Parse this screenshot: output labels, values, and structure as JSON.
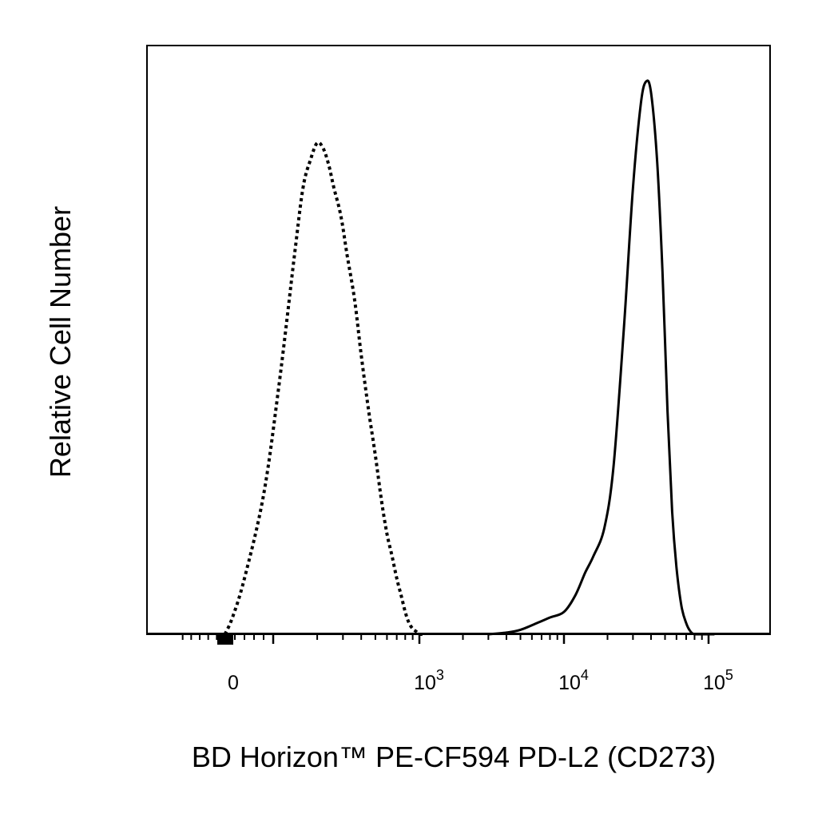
{
  "chart_data": {
    "type": "line",
    "title": "",
    "xlabel": "BD Horizon™ PE-CF594 PD-L2 (CD273)",
    "ylabel": "Relative Cell Number",
    "x_scale": "biexponential",
    "xlim": [
      -120,
      200000
    ],
    "ylim": [
      0,
      100
    ],
    "grid": false,
    "legend": "none",
    "x_ticks": [
      {
        "value": 0,
        "label": "0",
        "exp": ""
      },
      {
        "value": 1000,
        "label": "10",
        "exp": "3"
      },
      {
        "value": 10000,
        "label": "10",
        "exp": "4"
      },
      {
        "value": 100000,
        "label": "10",
        "exp": "5"
      }
    ],
    "series": [
      {
        "style": "dotted",
        "color": "#000000",
        "x": [
          -1,
          15,
          40,
          80,
          110,
          140,
          160,
          180,
          200,
          220,
          240,
          260,
          290,
          320,
          360,
          400,
          450,
          500,
          550,
          600,
          650,
          700,
          750,
          800,
          850,
          900,
          950,
          1000,
          1050
        ],
        "y": [
          0,
          3,
          10,
          25,
          45,
          68,
          80,
          85,
          88,
          87,
          84,
          80,
          75,
          68,
          60,
          50,
          40,
          32,
          24,
          18,
          14,
          10,
          7,
          4,
          2,
          1,
          0.5,
          0,
          0
        ]
      },
      {
        "style": "solid",
        "color": "#000000",
        "x": [
          3000,
          4000,
          5000,
          6500,
          8000,
          10000,
          12000,
          14000,
          16000,
          19000,
          22000,
          26000,
          30000,
          34000,
          37000,
          40000,
          44000,
          48000,
          52000,
          56000,
          60000,
          65000,
          70000,
          75000,
          80000,
          90000,
          100000,
          110000
        ],
        "y": [
          0,
          0.3,
          0.8,
          2,
          3,
          4,
          7,
          11,
          14,
          19,
          30,
          55,
          80,
          95,
          99,
          97,
          85,
          65,
          40,
          22,
          12,
          5,
          2,
          0.5,
          0,
          0,
          0,
          0
        ]
      }
    ]
  }
}
